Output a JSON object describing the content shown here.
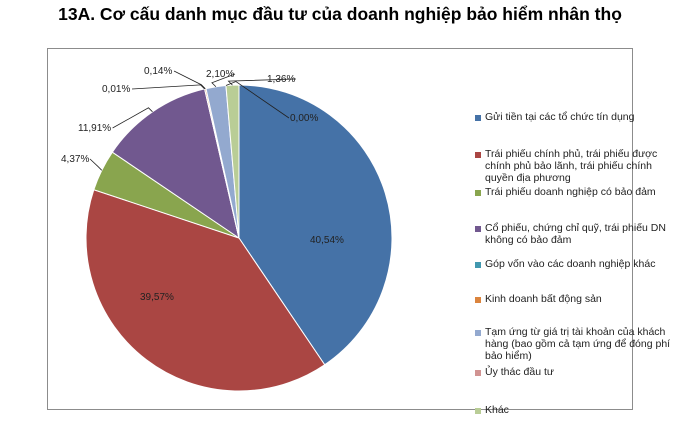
{
  "title": "13A. Cơ cấu danh mục đầu tư của doanh nghiệp bảo hiểm nhân thọ",
  "chart_data": {
    "type": "pie",
    "title": "13A. Cơ cấu danh mục đầu tư của doanh nghiệp bảo hiểm nhân thọ",
    "legend_position": "right",
    "slices": [
      {
        "label": "Gửi tiền tại các tổ chức tín dụng",
        "value": 40.54,
        "value_label": "40,54%",
        "color": "#4572A7"
      },
      {
        "label": "Trái phiếu chính phủ, trái phiếu được chính phủ bảo lãnh, trái phiếu chính quyền địa phương",
        "value": 39.57,
        "value_label": "39,57%",
        "color": "#AA4643"
      },
      {
        "label": "Trái phiếu doanh nghiệp có bảo đảm",
        "value": 4.37,
        "value_label": "4,37%",
        "color": "#89A54E"
      },
      {
        "label": "Cổ phiếu, chứng chỉ quỹ, trái phiếu DN không có bảo đảm",
        "value": 11.91,
        "value_label": "11,91%",
        "color": "#71588F"
      },
      {
        "label": "Góp vốn vào các doanh nghiệp khác",
        "value": 0.01,
        "value_label": "0,01%",
        "color": "#4198AF"
      },
      {
        "label": "Kinh doanh bất động sản",
        "value": 0.14,
        "value_label": "0,14%",
        "color": "#DB843D"
      },
      {
        "label": "Tạm ứng từ giá trị tài khoản của khách hàng (bao gồm cả tạm ứng để đóng phí bảo hiểm)",
        "value": 2.1,
        "value_label": "2,10%",
        "color": "#93A9CF"
      },
      {
        "label": "Ủy thác đầu tư",
        "value": 0.0,
        "value_label": "0,00%",
        "color": "#D19392"
      },
      {
        "label": "Khác",
        "value": 1.36,
        "value_label": "1,36%",
        "color": "#B9CD96"
      }
    ]
  }
}
